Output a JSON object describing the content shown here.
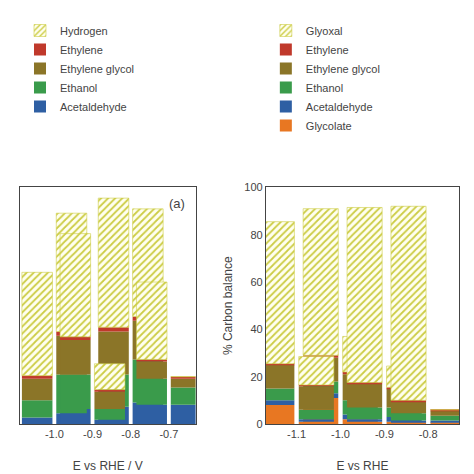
{
  "chart_data": [
    {
      "type": "bar",
      "stacked": true,
      "xlabel": "E vs RHE / V",
      "x": [
        -1.0,
        -1.0,
        -0.9,
        -0.9,
        -0.8,
        -0.8,
        -0.7,
        -0.7
      ],
      "xlim": [
        -1.09,
        -0.63
      ],
      "xticks": [
        {
          "value": -1.0,
          "label": "-1.0"
        },
        {
          "value": -0.9,
          "label": "-0.9"
        },
        {
          "value": -0.8,
          "label": "-0.8"
        },
        {
          "value": -0.7,
          "label": "-0.7"
        }
      ],
      "ylim": [
        0,
        110
      ],
      "tick_labels": "x",
      "grid": false,
      "legend": "top",
      "annotations": [
        {
          "text": "(a)"
        }
      ],
      "series": [
        {
          "name": "Acetaldehyde",
          "color": "#2E5FA3",
          "values": [
            3,
            5,
            7,
            2,
            8,
            10,
            9,
            9
          ]
        },
        {
          "name": "Ethanol",
          "color": "#3A9B4B",
          "values": [
            8,
            18,
            16,
            5,
            15,
            20,
            12,
            8
          ]
        },
        {
          "name": "Ethylene glycol",
          "color": "#8B7528",
          "values": [
            10,
            18,
            16,
            8,
            20,
            18,
            8,
            4
          ]
        },
        {
          "name": "Ethylene",
          "color": "#C0392B",
          "values": [
            1.5,
            2,
            1.5,
            1,
            2,
            2,
            1,
            1
          ]
        },
        {
          "name": "Hydrogen",
          "color": "#FFFFF0",
          "marker": "hatch",
          "values": [
            48,
            55,
            48,
            12,
            60,
            50,
            36,
            0
          ]
        }
      ]
    },
    {
      "type": "bar",
      "stacked": true,
      "xlabel": "E vs RHE",
      "ylabel": "% Carbon balance",
      "x": [
        -1.1,
        -1.1,
        -1.0,
        -1.0,
        -0.9,
        -0.9,
        -0.8,
        -0.8
      ],
      "xlim": [
        -1.17,
        -0.73
      ],
      "xticks": [
        {
          "value": -1.1,
          "label": "-1.1"
        },
        {
          "value": -1.0,
          "label": "-1.0"
        },
        {
          "value": -0.9,
          "label": "-0.9"
        },
        {
          "value": -0.8,
          "label": "-0.8"
        }
      ],
      "ylim": [
        0,
        100
      ],
      "yticks": [
        0,
        20,
        40,
        60,
        80,
        100
      ],
      "grid": false,
      "legend": "top",
      "series": [
        {
          "name": "Glycolate",
          "color": "#E87722",
          "values": [
            8,
            1,
            11,
            2,
            1,
            1,
            0.5,
            0.5
          ]
        },
        {
          "name": "Acetaldehyde",
          "color": "#2E5FA3",
          "values": [
            2,
            1,
            2,
            2,
            1,
            2,
            1,
            1
          ]
        },
        {
          "name": "Ethanol",
          "color": "#3A9B4B",
          "values": [
            5,
            4,
            5,
            6,
            5,
            4,
            3,
            2
          ]
        },
        {
          "name": "Ethylene glycol",
          "color": "#8B7528",
          "values": [
            10,
            10,
            10,
            11,
            10,
            8,
            5,
            2
          ]
        },
        {
          "name": "Ethylene",
          "color": "#C0392B",
          "values": [
            0.5,
            0.5,
            1,
            1,
            0.5,
            0.5,
            0.5,
            0.5
          ]
        },
        {
          "name": "Glyoxal",
          "color": "#FFFFF0",
          "marker": "hatch",
          "values": [
            60,
            12,
            62,
            15,
            74,
            9,
            82,
            0
          ]
        }
      ]
    }
  ]
}
